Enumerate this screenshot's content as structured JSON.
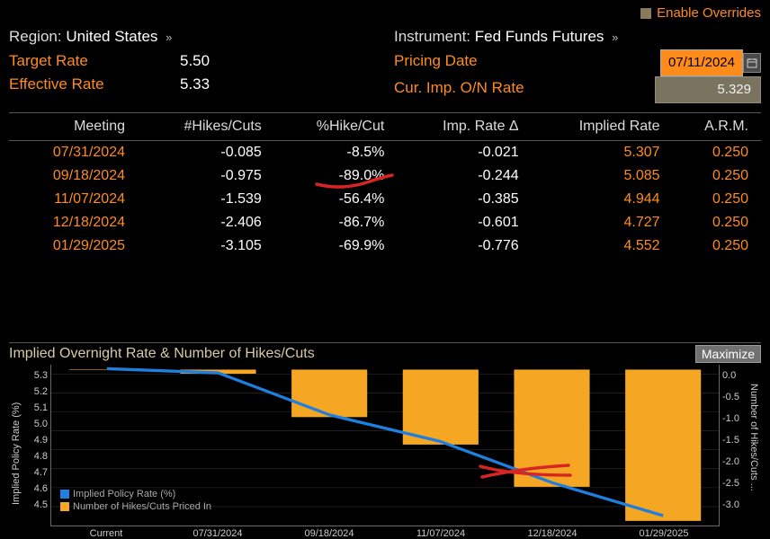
{
  "top": {
    "enable_overrides_label": "Enable Overrides"
  },
  "header": {
    "region_label": "Region:",
    "region_value": "United States",
    "target_rate_label": "Target Rate",
    "target_rate_value": "5.50",
    "effective_rate_label": "Effective Rate",
    "effective_rate_value": "5.33",
    "instrument_label": "Instrument:",
    "instrument_value": "Fed Funds Futures",
    "pricing_date_label": "Pricing Date",
    "pricing_date_value": "07/11/2024",
    "cur_imp_label": "Cur. Imp. O/N Rate",
    "cur_imp_value": "5.329"
  },
  "table": {
    "columns": [
      "Meeting",
      "#Hikes/Cuts",
      "%Hike/Cut",
      "Imp. Rate Δ",
      "Implied Rate",
      "A.R.M."
    ],
    "rows": [
      {
        "meeting": "07/31/2024",
        "hikes": "-0.085",
        "pct": "-8.5%",
        "delta": "-0.021",
        "implied": "5.307",
        "arm": "0.250"
      },
      {
        "meeting": "09/18/2024",
        "hikes": "-0.975",
        "pct": "-89.0%",
        "delta": "-0.244",
        "implied": "5.085",
        "arm": "0.250"
      },
      {
        "meeting": "11/07/2024",
        "hikes": "-1.539",
        "pct": "-56.4%",
        "delta": "-0.385",
        "implied": "4.944",
        "arm": "0.250"
      },
      {
        "meeting": "12/18/2024",
        "hikes": "-2.406",
        "pct": "-86.7%",
        "delta": "-0.601",
        "implied": "4.727",
        "arm": "0.250"
      },
      {
        "meeting": "01/29/2025",
        "hikes": "-3.105",
        "pct": "-69.9%",
        "delta": "-0.776",
        "implied": "4.552",
        "arm": "0.250"
      }
    ]
  },
  "chart": {
    "title": "Implied Overnight Rate & Number of Hikes/Cuts",
    "maximize_label": "Maximize",
    "left_axis_label": "Implied Policy Rate (%)",
    "right_axis_label": "Number of Hikes/Cuts ...",
    "left_ticks": [
      "5.3",
      "5.2",
      "5.1",
      "5.0",
      "4.9",
      "4.8",
      "4.7",
      "4.6",
      "4.5"
    ],
    "left_min": 4.5,
    "left_max": 5.35,
    "right_ticks": [
      "0.0",
      "-0.5",
      "-1.0",
      "-1.5",
      "-2.0",
      "-2.5",
      "-3.0"
    ],
    "right_min": -3.2,
    "right_max": 0.1,
    "x_labels": [
      "Current",
      "07/31/2024",
      "09/18/2024",
      "11/07/2024",
      "12/18/2024",
      "01/29/2025"
    ],
    "bar_color": "#f5a623",
    "line_color": "#1e7fe0",
    "grid_color": "#333333",
    "bg_color": "#000000",
    "legend": [
      {
        "swatch": "#1e7fe0",
        "label": "Implied Policy Rate (%)"
      },
      {
        "swatch": "#f5a623",
        "label": "Number of Hikes/Cuts Priced In"
      }
    ],
    "series_bars": [
      {
        "x": 0,
        "v": 0.0
      },
      {
        "x": 1,
        "v": -0.085
      },
      {
        "x": 2,
        "v": -0.975
      },
      {
        "x": 3,
        "v": -1.539
      },
      {
        "x": 4,
        "v": -2.406
      },
      {
        "x": 5,
        "v": -3.105
      }
    ],
    "series_line": [
      {
        "x": 0,
        "v": 5.329
      },
      {
        "x": 1,
        "v": 5.307
      },
      {
        "x": 2,
        "v": 5.085
      },
      {
        "x": 3,
        "v": 4.944
      },
      {
        "x": 4,
        "v": 4.727
      },
      {
        "x": 5,
        "v": 4.552
      }
    ],
    "annotation_color": "#d92424"
  }
}
